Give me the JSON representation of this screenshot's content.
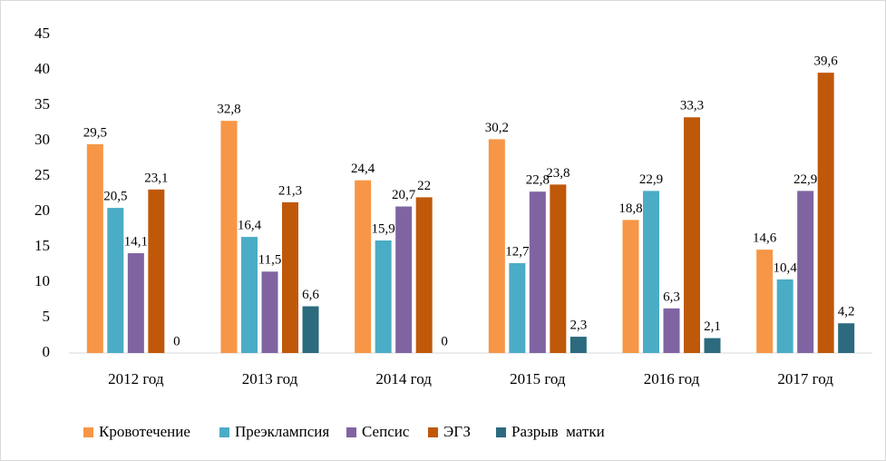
{
  "chart_data": {
    "type": "bar",
    "categories": [
      "2012 год",
      "2013 год",
      "2014 год",
      "2015 год",
      "2016 год",
      "2017 год"
    ],
    "series": [
      {
        "name": "Кровотечение",
        "color": "#f79646",
        "values": [
          29.5,
          32.8,
          24.4,
          30.2,
          18.8,
          14.6
        ],
        "value_labels": [
          "29,5",
          "32,8",
          "24,4",
          "30,2",
          "18,8",
          "14,6"
        ]
      },
      {
        "name": "Преэклампсия",
        "color": "#4bacc6",
        "values": [
          20.5,
          16.4,
          15.9,
          12.7,
          22.9,
          10.4
        ],
        "value_labels": [
          "20,5",
          "16,4",
          "15,9",
          "12,7",
          "22,9",
          "10,4"
        ]
      },
      {
        "name": "Сепсис",
        "color": "#8064a2",
        "values": [
          14.1,
          11.5,
          20.7,
          22.8,
          6.3,
          22.9
        ],
        "value_labels": [
          "14,1",
          "11,5",
          "20,7",
          "22,8",
          "6,3",
          "22,9"
        ]
      },
      {
        "name": "ЭГЗ",
        "color": "#c0580a",
        "values": [
          23.1,
          21.3,
          22,
          23.8,
          33.3,
          39.6
        ],
        "value_labels": [
          "23,1",
          "21,3",
          "22",
          "23,8",
          "33,3",
          "39,6"
        ]
      },
      {
        "name": "Разрыв  матки",
        "color": "#2c6a7e",
        "values": [
          0,
          6.6,
          0,
          2.3,
          2.1,
          4.2
        ],
        "value_labels": [
          "0",
          "6,6",
          "0",
          "2,3",
          "2,1",
          "4,2"
        ]
      }
    ],
    "ylim": [
      0,
      45
    ],
    "yticks": [
      0,
      5,
      10,
      15,
      20,
      25,
      30,
      35,
      40,
      45
    ],
    "grid": false,
    "legend": "bottom"
  }
}
